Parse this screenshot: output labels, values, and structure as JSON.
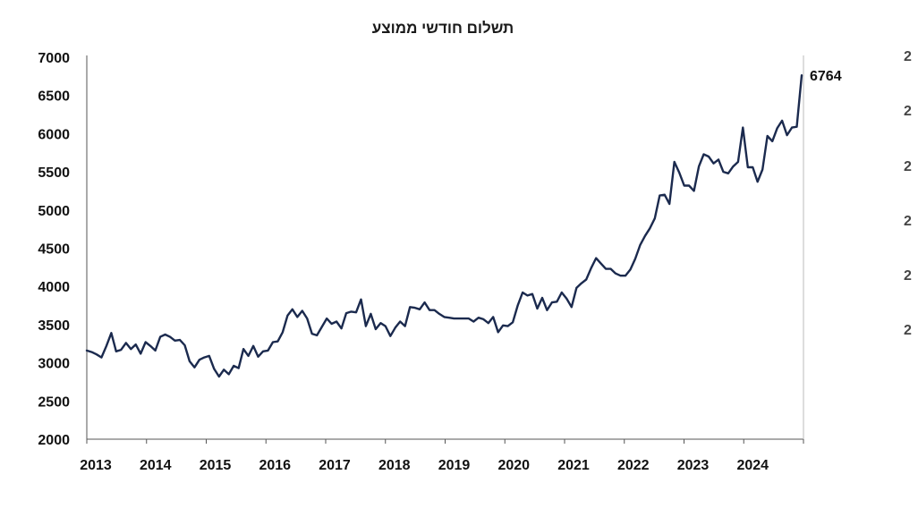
{
  "chart_data": {
    "type": "line",
    "title": "תשלום חודשי ממוצע",
    "xlabel": "",
    "ylabel": "",
    "ylim": [
      2000,
      7000
    ],
    "y_ticks": [
      2000,
      2500,
      3000,
      3500,
      4000,
      4500,
      5000,
      5500,
      6000,
      6500,
      7000
    ],
    "x_ticks": [
      "2013",
      "2014",
      "2015",
      "2016",
      "2017",
      "2018",
      "2019",
      "2020",
      "2021",
      "2022",
      "2023",
      "2024"
    ],
    "grid": false,
    "line_color": "#1b2a4e",
    "end_label": "6764",
    "series": [
      {
        "values": [
          3160,
          3140,
          3110,
          3070,
          3220,
          3390,
          3150,
          3170,
          3260,
          3180,
          3240,
          3120,
          3270,
          3220,
          3160,
          3340,
          3370,
          3340,
          3290,
          3300,
          3230,
          3020,
          2940,
          3040,
          3070,
          3090,
          2920,
          2820,
          2910,
          2850,
          2960,
          2930,
          3180,
          3090,
          3220,
          3080,
          3150,
          3160,
          3270,
          3280,
          3400,
          3620,
          3700,
          3600,
          3680,
          3580,
          3380,
          3360,
          3470,
          3580,
          3510,
          3540,
          3450,
          3650,
          3670,
          3660,
          3830,
          3480,
          3640,
          3440,
          3520,
          3480,
          3350,
          3460,
          3540,
          3480,
          3730,
          3720,
          3700,
          3790,
          3690,
          3690,
          3640,
          3600,
          3590,
          3580,
          3580,
          3580,
          3580,
          3540,
          3590,
          3570,
          3520,
          3600,
          3400,
          3490,
          3480,
          3530,
          3750,
          3920,
          3880,
          3900,
          3710,
          3850,
          3690,
          3790,
          3800,
          3920,
          3840,
          3730,
          3980,
          4040,
          4090,
          4240,
          4370,
          4300,
          4230,
          4230,
          4170,
          4140,
          4140,
          4220,
          4360,
          4540,
          4660,
          4760,
          4890,
          5190,
          5200,
          5080,
          5630,
          5490,
          5320,
          5320,
          5250,
          5570,
          5730,
          5700,
          5610,
          5660,
          5500,
          5480,
          5570,
          5630,
          6080,
          5560,
          5560,
          5370,
          5530,
          5970,
          5900,
          6070,
          6170,
          5980,
          6080,
          6090,
          6764
        ]
      }
    ]
  }
}
